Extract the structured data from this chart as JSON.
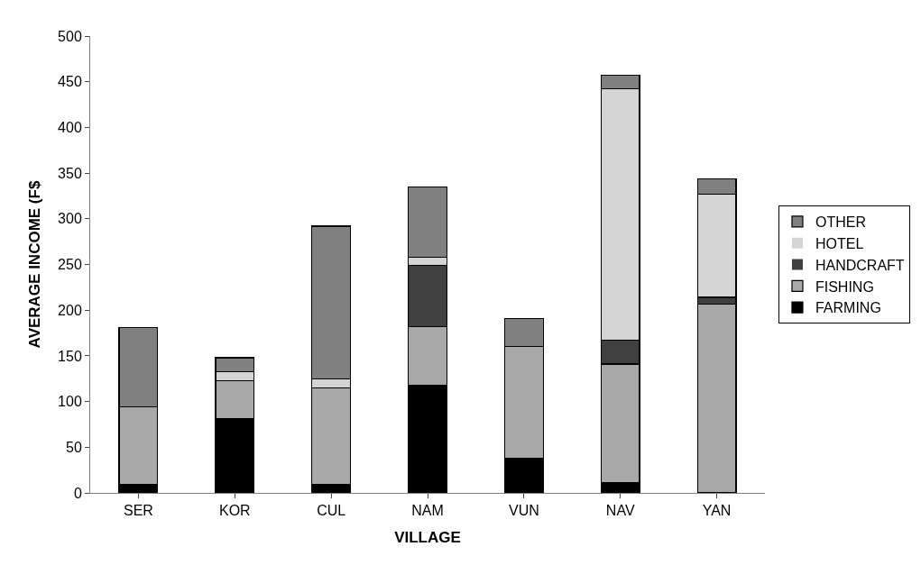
{
  "chart_data": {
    "type": "bar",
    "stacked": true,
    "xlabel": "VILLAGE",
    "ylabel": "AVERAGE INCOME (F$",
    "categories": [
      "SER",
      "KOR",
      "CUL",
      "NAM",
      "VUN",
      "NAV",
      "YAN"
    ],
    "series": [
      {
        "name": "FARMING",
        "color": "#000000",
        "values": [
          9,
          81,
          9,
          118,
          38,
          11,
          0
        ]
      },
      {
        "name": "FISHING",
        "color": "#a8a8a8",
        "values": [
          85,
          42,
          106,
          64,
          122,
          130,
          207
        ]
      },
      {
        "name": "HANDCRAFT",
        "color": "#404040",
        "values": [
          0,
          0,
          0,
          67,
          0,
          26,
          7
        ]
      },
      {
        "name": "HOTEL",
        "color": "#d4d4d4",
        "values": [
          0,
          10,
          10,
          9,
          0,
          275,
          113
        ]
      },
      {
        "name": "OTHER",
        "color": "#808080",
        "values": [
          87,
          15,
          167,
          77,
          31,
          15,
          17
        ]
      }
    ],
    "ylim": [
      0,
      500
    ],
    "yticks": [
      0,
      50,
      100,
      150,
      200,
      250,
      300,
      350,
      400,
      450,
      500
    ],
    "grid": false,
    "legend": "right"
  }
}
